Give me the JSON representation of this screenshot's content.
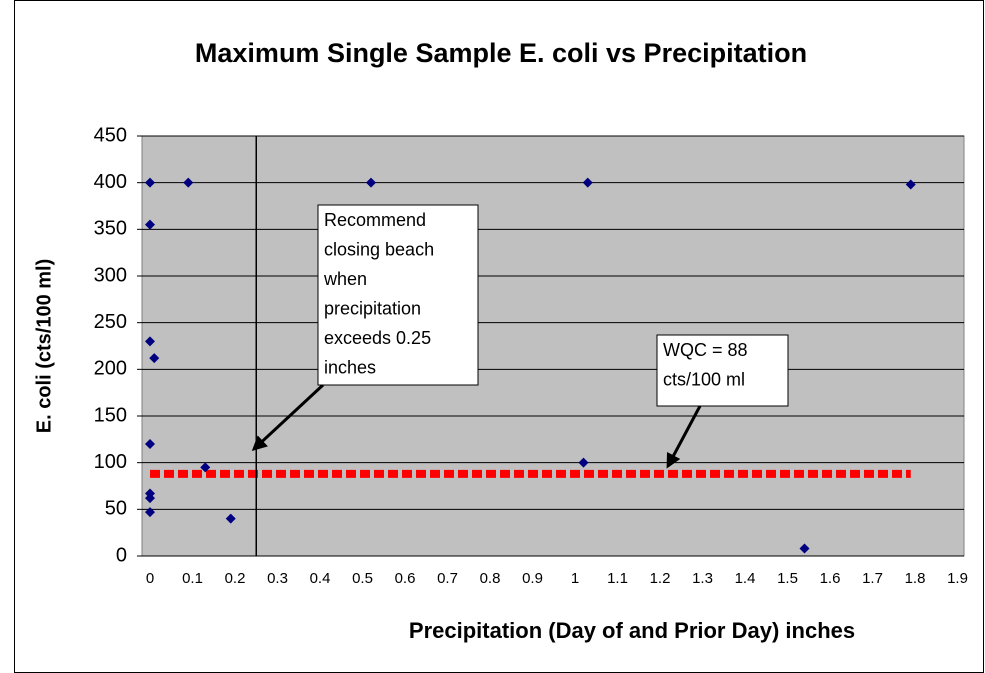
{
  "chart_data": {
    "type": "scatter",
    "title": "Maximum Single Sample E. coli vs Precipitation",
    "x_label": "Precipitation (Day of and Prior Day) inches",
    "y_label": "E. coli (cts/100 ml)",
    "xlim": [
      0,
      1.9
    ],
    "xticks": [
      0,
      0.1,
      0.2,
      0.3,
      0.4,
      0.5,
      0.6,
      0.7,
      0.8,
      0.9,
      1,
      1.1,
      1.2,
      1.3,
      1.4,
      1.5,
      1.6,
      1.7,
      1.8,
      1.9
    ],
    "ylim": [
      0,
      450
    ],
    "yticks": [
      0,
      50,
      100,
      150,
      200,
      250,
      300,
      350,
      400,
      450
    ],
    "grid": true,
    "series": [
      {
        "color": "#000080",
        "x": [
          0,
          0,
          0,
          0.01,
          0,
          0,
          0,
          0,
          0.09,
          0.13,
          0.19,
          0.52,
          1.02,
          1.03,
          1.54,
          1.79
        ],
        "values": [
          400,
          355,
          230,
          212,
          120,
          67,
          62,
          47,
          400,
          95,
          40,
          400,
          100,
          400,
          8,
          398
        ]
      }
    ],
    "wqc_line": {
      "y": 88,
      "x": [
        0,
        1.79
      ],
      "color": "#ff0000"
    },
    "threshold_line": {
      "x": 0.25,
      "color": "#000000"
    },
    "annotations": [
      {
        "lines": [
          "Recommend",
          "closing beach",
          "when",
          "precipitation",
          "exceeds 0.25",
          "inches"
        ]
      },
      {
        "lines": [
          "WQC = 88",
          "cts/100 ml"
        ]
      }
    ]
  }
}
